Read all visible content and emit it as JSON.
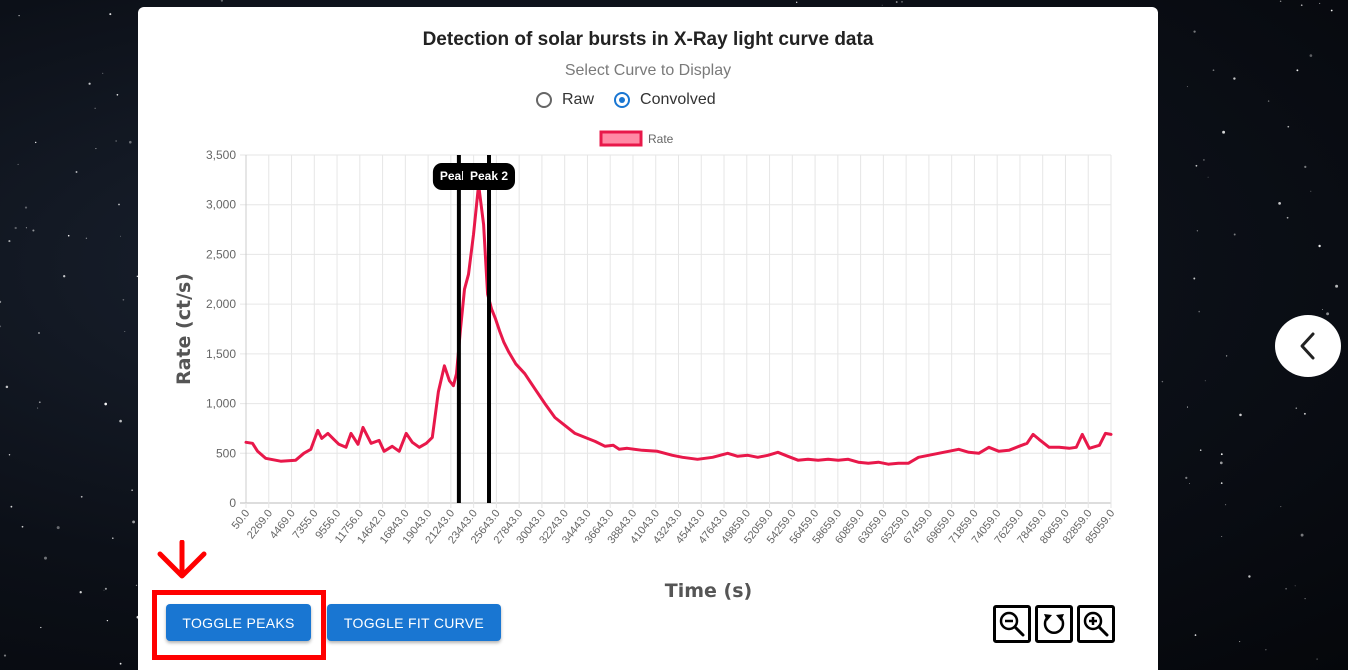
{
  "page": {
    "title": "Detection of solar bursts in X-Ray light curve data",
    "select_label": "Select Curve to Display",
    "radio_options": [
      "Raw",
      "Convolved"
    ],
    "selected": "Convolved"
  },
  "buttons": {
    "toggle_peaks": "TOGGLE PEAKS",
    "toggle_fit": "TOGGLE FIT CURVE"
  },
  "icons": {
    "zoom_out": "zoom-out-icon",
    "reset": "reset-icon",
    "zoom_in": "zoom-in-icon",
    "chevron": "chevron-left-icon",
    "arrow": "arrow-down-icon"
  },
  "colors": {
    "line": "#e8184a",
    "legend_fill": "#ff8aa5",
    "button": "#1976d2",
    "highlight": "#ff0000"
  },
  "chart_data": {
    "type": "line",
    "title": "",
    "xlabel": "Time (s)",
    "ylabel": "Rate (ct/s)",
    "legend": "Rate",
    "legend_position": "top-center",
    "ylim": [
      0,
      3500
    ],
    "yticks": [
      "0",
      "500",
      "1,000",
      "1,500",
      "2,000",
      "2,500",
      "3,000",
      "3,500"
    ],
    "xlim": [
      50,
      86159
    ],
    "xticks": [
      "50.0",
      "2269.0",
      "4469.0",
      "7355.0",
      "9556.0",
      "11756.0",
      "14642.0",
      "16843.0",
      "19043.0",
      "21243.0",
      "23443.0",
      "25643.0",
      "27843.0",
      "30043.0",
      "32243.0",
      "34443.0",
      "36643.0",
      "38843.0",
      "41043.0",
      "43243.0",
      "45443.0",
      "47643.0",
      "49859.0",
      "52059.0",
      "54259.0",
      "56459.0",
      "58659.0",
      "60859.0",
      "63059.0",
      "65259.0",
      "67459.0",
      "69659.0",
      "71859.0",
      "74059.0",
      "76259.0",
      "78459.0",
      "80659.0",
      "82859.0",
      "85059.0"
    ],
    "grid": true,
    "x": [
      50,
      700,
      1200,
      2000,
      3500,
      5000,
      5800,
      6500,
      7200,
      7600,
      8200,
      8800,
      9300,
      10000,
      10500,
      11200,
      11700,
      12500,
      13300,
      13800,
      14600,
      15300,
      16000,
      16600,
      17300,
      18000,
      18600,
      19200,
      19800,
      20300,
      20700,
      21000,
      21400,
      21800,
      22200,
      22700,
      23200,
      23700,
      24100,
      24500,
      24900,
      25300,
      25700,
      26200,
      26900,
      27800,
      28800,
      29800,
      30800,
      31800,
      32800,
      33800,
      34800,
      35800,
      36600,
      37200,
      38000,
      39500,
      41000,
      42500,
      43500,
      45000,
      46500,
      48000,
      49000,
      50000,
      51000,
      52000,
      53000,
      54000,
      55000,
      56000,
      57000,
      58000,
      59000,
      60000,
      61000,
      62000,
      63000,
      64000,
      65000,
      66000,
      67000,
      68000,
      69000,
      70000,
      71000,
      72000,
      73000,
      74000,
      75000,
      76000,
      77000,
      77800,
      78400,
      79000,
      80000,
      81000,
      82000,
      82700,
      83300,
      84000,
      85000,
      85600,
      86159
    ],
    "values": [
      610,
      600,
      520,
      450,
      420,
      430,
      500,
      540,
      730,
      650,
      700,
      640,
      590,
      560,
      700,
      590,
      760,
      600,
      630,
      520,
      570,
      520,
      700,
      610,
      560,
      600,
      660,
      1120,
      1380,
      1230,
      1180,
      1300,
      1750,
      2150,
      2300,
      2700,
      3200,
      2800,
      2100,
      1950,
      1850,
      1730,
      1620,
      1520,
      1400,
      1300,
      1150,
      1000,
      860,
      780,
      700,
      660,
      620,
      570,
      580,
      540,
      550,
      530,
      520,
      480,
      460,
      440,
      460,
      500,
      470,
      480,
      460,
      480,
      510,
      470,
      430,
      440,
      430,
      440,
      430,
      440,
      410,
      400,
      410,
      390,
      400,
      400,
      460,
      480,
      500,
      520,
      540,
      510,
      500,
      560,
      520,
      530,
      570,
      600,
      690,
      640,
      560,
      560,
      550,
      560,
      690,
      550,
      580,
      700,
      690
    ],
    "annotations": [
      {
        "label": "Peak 1",
        "x": 21243
      },
      {
        "label": "Peak 2",
        "x": 24241
      }
    ]
  }
}
